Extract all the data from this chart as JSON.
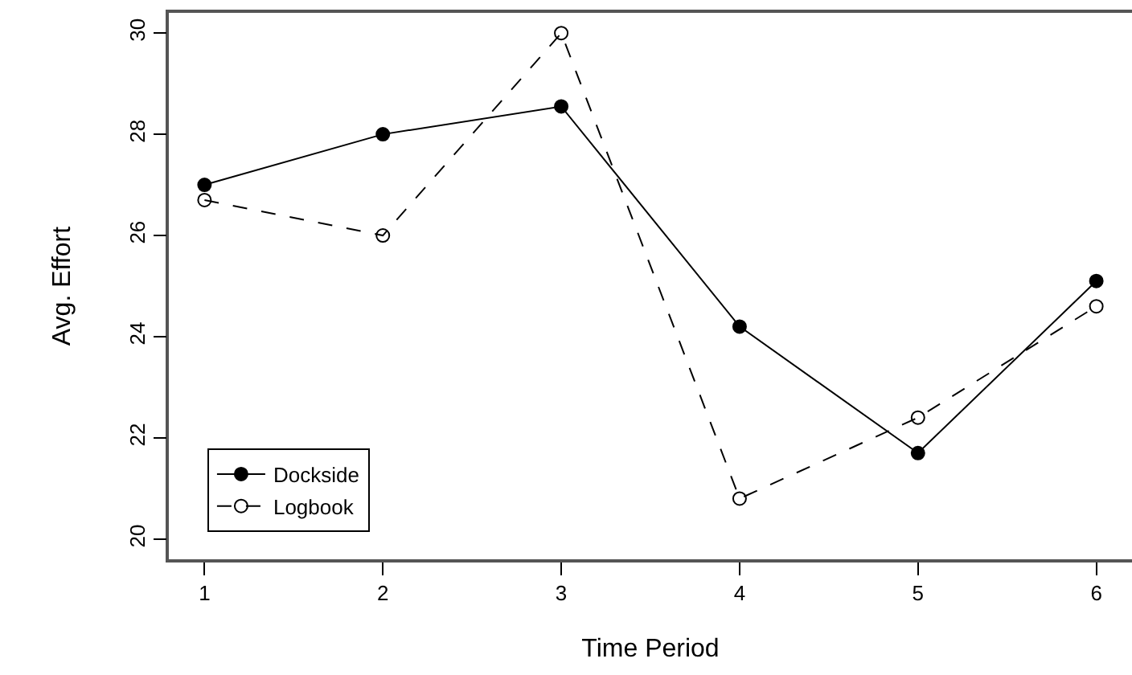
{
  "chart_data": {
    "type": "line",
    "xlabel": "Time Period",
    "ylabel": "Avg. Effort",
    "x": [
      1,
      2,
      3,
      4,
      5,
      6
    ],
    "series": [
      {
        "name": "Dockside",
        "color": "#000000",
        "line_style": "solid",
        "values": [
          27.0,
          28.0,
          28.55,
          24.2,
          21.7,
          25.1
        ]
      },
      {
        "name": "Logbook",
        "color": "#000000",
        "line_style": "dashed",
        "values": [
          26.7,
          26.0,
          30.0,
          20.8,
          22.4,
          24.6
        ]
      }
    ],
    "xlim": [
      0.8,
      6.2
    ],
    "xticks": [
      1,
      2,
      3,
      4,
      5,
      6
    ],
    "ylim": [
      19.6,
      30.4
    ],
    "yticks": [
      20,
      22,
      24,
      26,
      28,
      30
    ],
    "grid": false,
    "legend": "bottom left",
    "marker": "circle"
  }
}
